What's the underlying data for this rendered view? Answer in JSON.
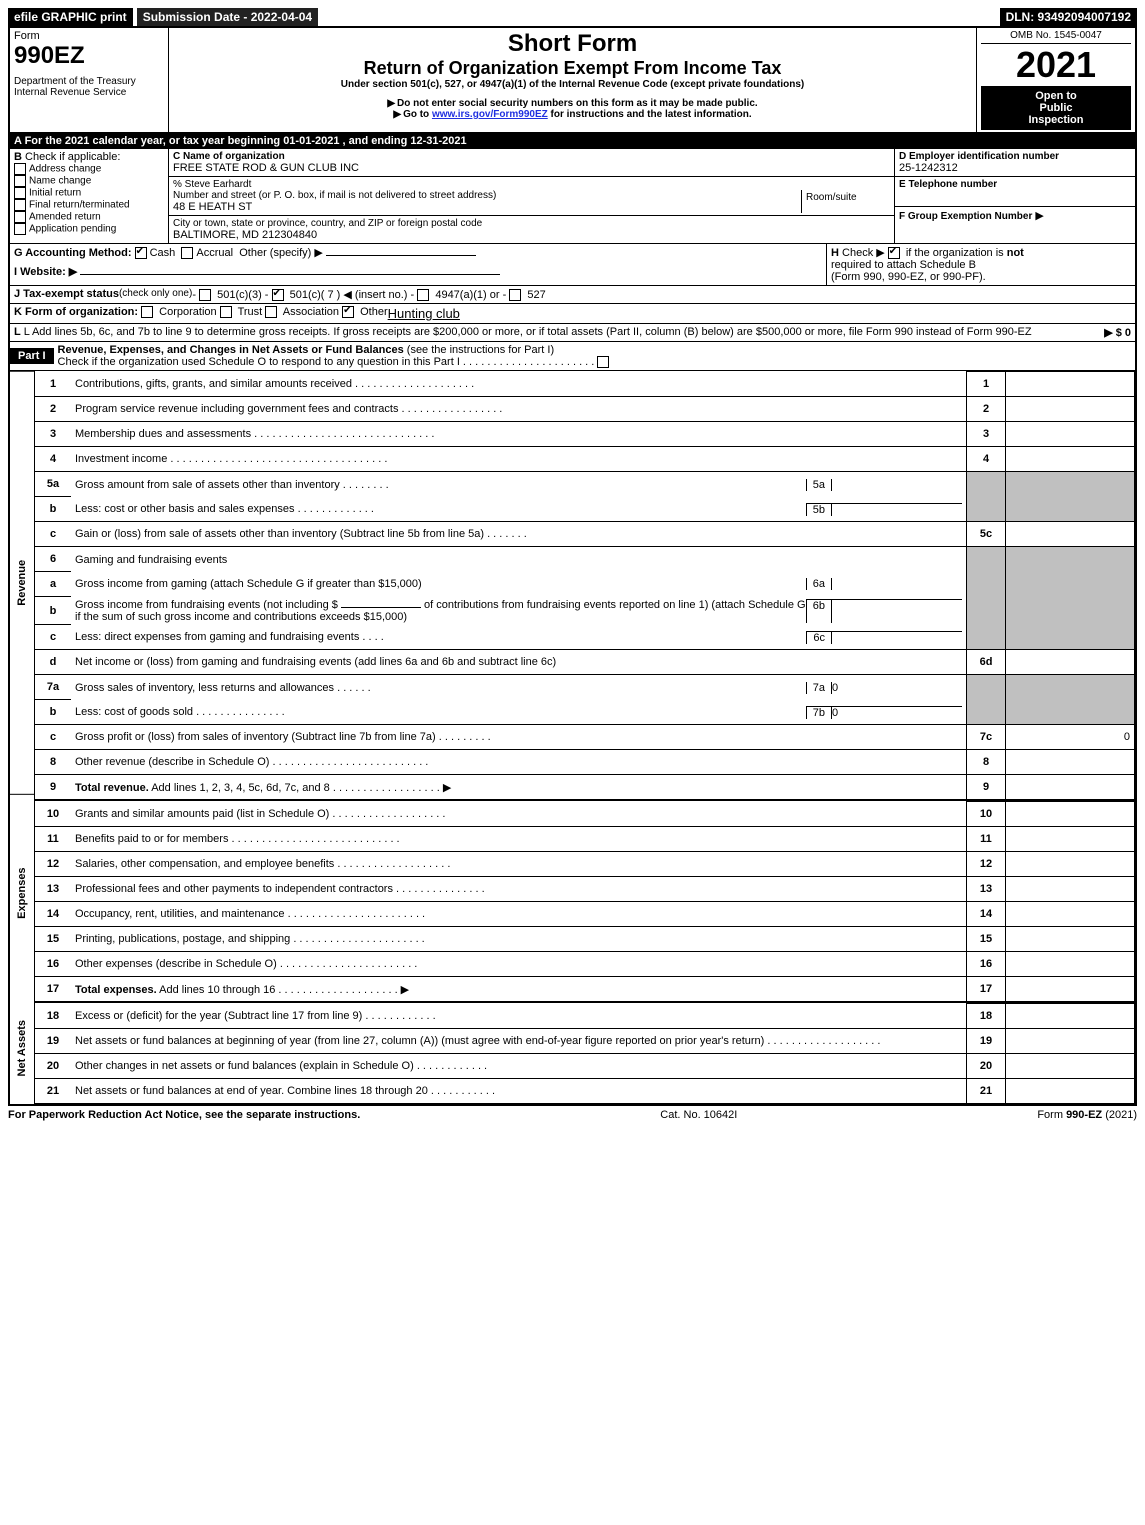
{
  "header": {
    "efile_label": "efile GRAPHIC print",
    "submission_label": "Submission Date - 2022-04-04",
    "dln_label": "DLN: 93492094007192"
  },
  "top": {
    "form_word": "Form",
    "form_no": "990EZ",
    "dept1": "Department of the Treasury",
    "dept2": "Internal Revenue Service",
    "short_form": "Short Form",
    "return_title": "Return of Organization Exempt From Income Tax",
    "under": "Under section 501(c), 527, or 4947(a)(1) of the Internal Revenue Code (except private foundations)",
    "note1": "Do not enter social security numbers on this form as it may be made public.",
    "note2_a": "Go to ",
    "note2_link": "www.irs.gov/Form990EZ",
    "note2_b": " for instructions and the latest information.",
    "omb": "OMB No. 1545-0047",
    "year": "2021",
    "open1": "Open to",
    "open2": "Public",
    "open3": "Inspection"
  },
  "sectionA": {
    "a_line": "A  For the 2021 calendar year, or tax year beginning 01-01-2021 , and ending 12-31-2021",
    "b_label": "B",
    "b_text": " Check if applicable:",
    "b_items": [
      "Address change",
      "Name change",
      "Initial return",
      "Final return/terminated",
      "Amended return",
      "Application pending"
    ],
    "c_name_label": "C Name of organization",
    "c_name": "FREE STATE ROD & GUN CLUB INC",
    "c_care": "% Steve Earhardt",
    "c_street_label": "Number and street (or P. O. box, if mail is not delivered to street address)",
    "c_room_label": "Room/suite",
    "c_street": "48 E HEATH ST",
    "c_city_label": "City or town, state or province, country, and ZIP or foreign postal code",
    "c_city": "BALTIMORE, MD  212304840",
    "d_label": "D Employer identification number",
    "d_val": "25-1242312",
    "e_label": "E Telephone number",
    "f_label": "F Group Exemption Number",
    "g_label": "G Accounting Method:",
    "g_cash": "Cash",
    "g_accr": "Accrual",
    "g_other": "Other (specify) ▶",
    "h_label": "H",
    "h_text_a": " Check ▶ ",
    "h_text_b": " if the organization is ",
    "h_text_not": "not",
    "h_text_c": " required to attach Schedule B",
    "h_text_d": "(Form 990, 990-EZ, or 990-PF).",
    "i_label": "I Website: ▶",
    "j_label": "J Tax-exempt status",
    "j_small": " (check only one) ",
    "j_opts": [
      "501(c)(3)",
      "501(c)( 7 ) ◀ (insert no.)",
      "4947(a)(1) or",
      "527"
    ],
    "k_label": "K Form of organization:",
    "k_opts": [
      "Corporation",
      "Trust",
      "Association",
      "Other"
    ],
    "k_other_val": "Hunting club",
    "l_text_a": "L Add lines 5b, 6c, and 7b to line 9 to determine gross receipts. If gross receipts are $200,000 or more, or if total assets (Part II, column (B) below) are $500,000 or more, file Form 990 instead of Form 990-EZ",
    "l_amount": "▶ $ 0"
  },
  "part1": {
    "badge": "Part I",
    "title": "Revenue, Expenses, and Changes in Net Assets or Fund Balances",
    "title_paren": " (see the instructions for Part I)",
    "sub": "Check if the organization used Schedule O to respond to any question in this Part I",
    "revenue_label": "Revenue",
    "expenses_label": "Expenses",
    "netassets_label": "Net Assets"
  },
  "lines": {
    "l1": "Contributions, gifts, grants, and similar amounts received",
    "l2": "Program service revenue including government fees and contracts",
    "l3": "Membership dues and assessments",
    "l4": "Investment income",
    "l5a": "Gross amount from sale of assets other than inventory",
    "l5b": "Less: cost or other basis and sales expenses",
    "l5c": "Gain or (loss) from sale of assets other than inventory (Subtract line 5b from line 5a)",
    "l6": "Gaming and fundraising events",
    "l6a": "Gross income from gaming (attach Schedule G if greater than $15,000)",
    "l6b_a": "Gross income from fundraising events (not including $",
    "l6b_b": "of contributions from fundraising events reported on line 1) (attach Schedule G if the sum of such gross income and contributions exceeds $15,000)",
    "l6c": "Less: direct expenses from gaming and fundraising events",
    "l6d": "Net income or (loss) from gaming and fundraising events (add lines 6a and 6b and subtract line 6c)",
    "l7a": "Gross sales of inventory, less returns and allowances",
    "l7b": "Less: cost of goods sold",
    "l7c": "Gross profit or (loss) from sales of inventory (Subtract line 7b from line 7a)",
    "l8": "Other revenue (describe in Schedule O)",
    "l9": "Total revenue.",
    "l9b": " Add lines 1, 2, 3, 4, 5c, 6d, 7c, and 8",
    "l10": "Grants and similar amounts paid (list in Schedule O)",
    "l11": "Benefits paid to or for members",
    "l12": "Salaries, other compensation, and employee benefits",
    "l13": "Professional fees and other payments to independent contractors",
    "l14": "Occupancy, rent, utilities, and maintenance",
    "l15": "Printing, publications, postage, and shipping",
    "l16": "Other expenses (describe in Schedule O)",
    "l17": "Total expenses.",
    "l17b": " Add lines 10 through 16",
    "l18": "Excess or (deficit) for the year (Subtract line 17 from line 9)",
    "l19": "Net assets or fund balances at beginning of year (from line 27, column (A)) (must agree with end-of-year figure reported on prior year's return)",
    "l20": "Other changes in net assets or fund balances (explain in Schedule O)",
    "l21": "Net assets or fund balances at end of year. Combine lines 18 through 20"
  },
  "values": {
    "v7a": "0",
    "v7b": "0",
    "v7c": "0"
  },
  "footer": {
    "left": "For Paperwork Reduction Act Notice, see the separate instructions.",
    "mid": "Cat. No. 10642I",
    "right_a": "Form ",
    "right_b": "990-EZ",
    "right_c": " (2021)"
  }
}
